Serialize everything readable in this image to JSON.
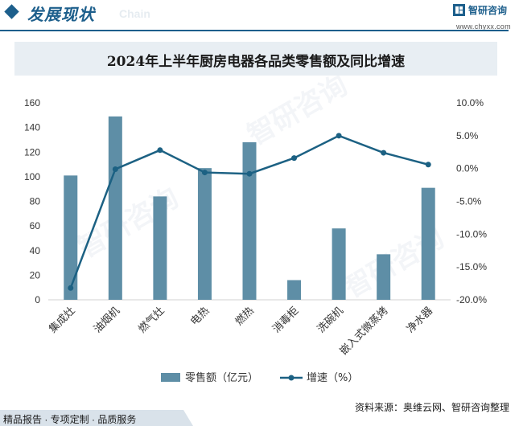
{
  "header": {
    "title": "发展现状",
    "ghost": "Chain"
  },
  "logo": {
    "name": "智研咨询",
    "url": "www.chyxx.com"
  },
  "watermark": "智研咨询",
  "footer": {
    "source": "资料来源：奥维云网、智研咨询整理",
    "tagline": "精品报告 · 专项定制 · 品质服务"
  },
  "colors": {
    "bar": "#5e8ea6",
    "line": "#1c6183",
    "brand": "#1d5f8c"
  },
  "chart_data": {
    "type": "bar",
    "title": "2024年上半年厨房电器各品类零售额及同比增速",
    "categories": [
      "集成灶",
      "油烟机",
      "燃气灶",
      "电热",
      "燃热",
      "消毒柜",
      "洗碗机",
      "嵌入式微蒸烤",
      "净水器"
    ],
    "series": [
      {
        "name": "零售额（亿元）",
        "type": "bar",
        "axis": "left",
        "values": [
          101,
          149,
          84,
          107,
          128,
          16,
          58,
          37,
          91
        ]
      },
      {
        "name": "增速（%）",
        "type": "line",
        "axis": "right",
        "values": [
          -18.2,
          -0.1,
          2.8,
          -0.6,
          -0.8,
          1.6,
          5.0,
          2.4,
          0.6
        ]
      }
    ],
    "ylim_left": [
      0,
      160
    ],
    "yticks_left": [
      "0",
      "20",
      "40",
      "60",
      "80",
      "100",
      "120",
      "140",
      "160"
    ],
    "ylim_right": [
      -20,
      10
    ],
    "yticks_right": [
      "-20.0%",
      "-15.0%",
      "-10.0%",
      "-5.0%",
      "0.0%",
      "5.0%",
      "10.0%"
    ],
    "legend_position": "bottom",
    "grid": false
  }
}
